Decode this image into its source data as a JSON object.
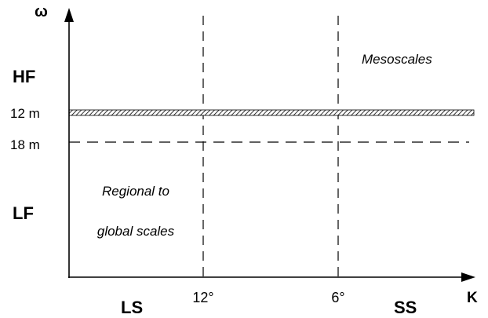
{
  "axes": {
    "y_label": "ω",
    "x_label": "K"
  },
  "y_ticks": {
    "top": "12 m",
    "bottom": "18 m"
  },
  "x_ticks": {
    "left": "12°",
    "right": "6°"
  },
  "bands": {
    "high_frequency": "HF",
    "low_frequency": "LF",
    "large_scale": "LS",
    "small_scale": "SS"
  },
  "regions": {
    "mesoscales": "Mesoscales",
    "regional_line1": "Regional to",
    "regional_line2": "global scales"
  },
  "colors": {
    "axis": "#000000",
    "dashed_lines": "#000000",
    "hatched_band": "#000000"
  }
}
